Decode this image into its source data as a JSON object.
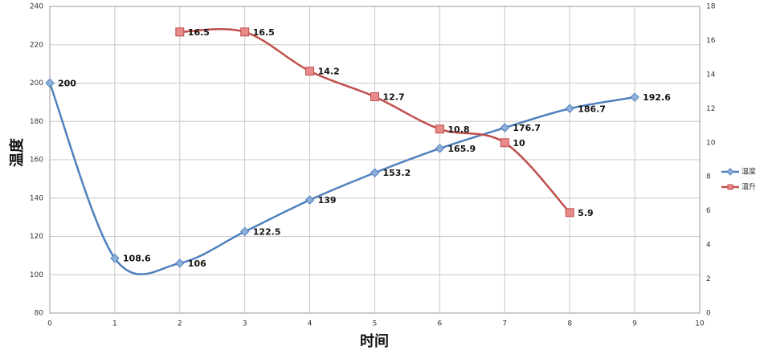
{
  "chart_data": {
    "type": "line",
    "x_label": "时间",
    "y_label": "温度",
    "xlim": [
      0,
      10
    ],
    "xticks": [
      0,
      1,
      2,
      3,
      4,
      5,
      6,
      7,
      8,
      9,
      10
    ],
    "ylim": [
      80,
      240
    ],
    "yticks": [
      80,
      100,
      120,
      140,
      160,
      180,
      200,
      220,
      240
    ],
    "y2lim": [
      0,
      18
    ],
    "y2ticks": [
      0,
      2,
      4,
      6,
      8,
      10,
      12,
      14,
      16,
      18
    ],
    "grid": true,
    "smooth": true,
    "legend": "right",
    "series": [
      {
        "name": "温度",
        "color": "#4f81bd",
        "marker": "diamond",
        "x": [
          0,
          1,
          2,
          3,
          4,
          5,
          6,
          7,
          8,
          9
        ],
        "values": [
          200,
          108.6,
          106,
          122.5,
          139,
          153.2,
          165.9,
          176.7,
          186.7,
          192.6
        ]
      },
      {
        "name": "温升",
        "color": "#c0504d",
        "marker": "square",
        "axis": "y2",
        "x": [
          2,
          3,
          4,
          5,
          6,
          7,
          8
        ],
        "values": [
          16.5,
          16.5,
          14.2,
          12.7,
          10.8,
          10,
          5.9
        ]
      }
    ]
  }
}
